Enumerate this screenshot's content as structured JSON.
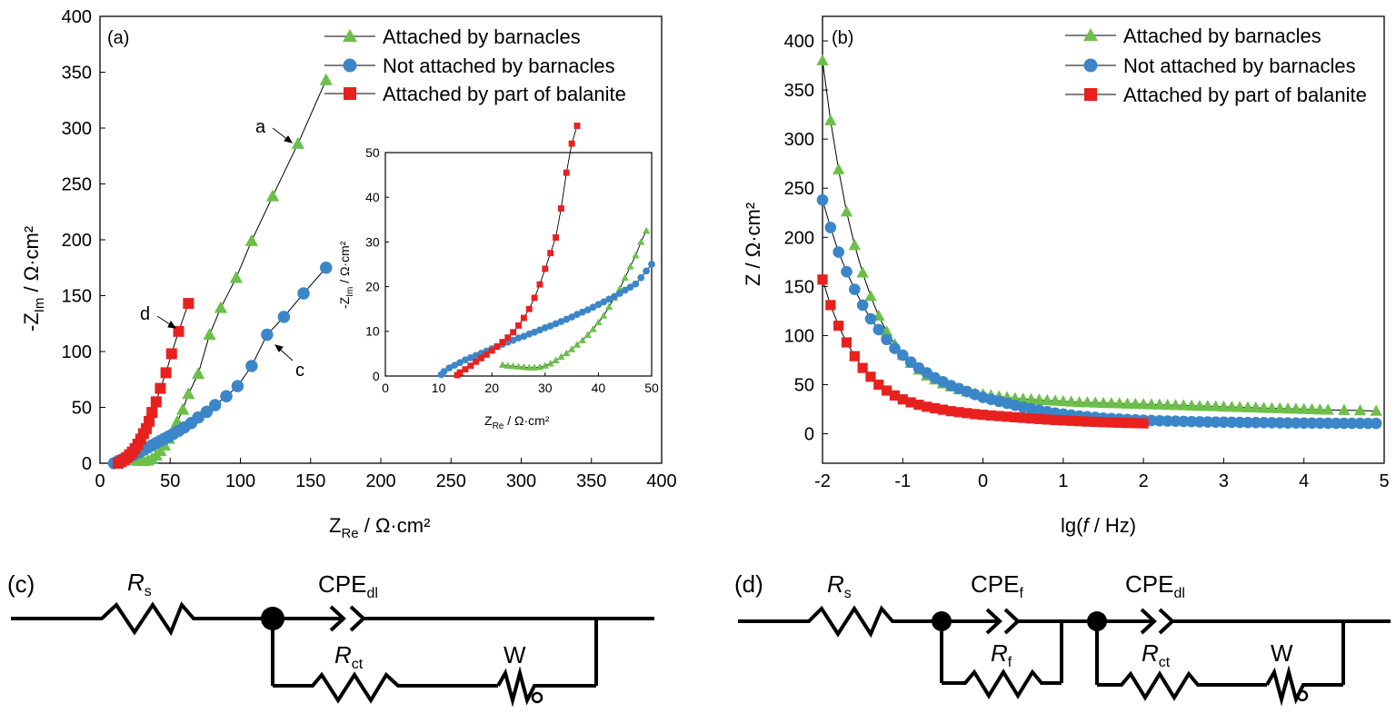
{
  "colors": {
    "green": "#6cc04a",
    "blue": "#3a86c8",
    "red": "#e8201e",
    "line": "#000000"
  },
  "chart_data": [
    {
      "type": "scatter",
      "panel_label": "(a)",
      "xlabel_main": "Z",
      "xlabel_sub": "Re",
      "xlabel_unit": " / Ω·cm²",
      "ylabel_main": "-Z",
      "ylabel_sub": "Im",
      "ylabel_unit": " / Ω·cm²",
      "xlim": [
        0,
        400
      ],
      "ylim": [
        0,
        400
      ],
      "xticks": [
        0,
        50,
        100,
        150,
        200,
        250,
        300,
        350,
        400
      ],
      "yticks": [
        0,
        50,
        100,
        150,
        200,
        250,
        300,
        350,
        400
      ],
      "legend_position": "top-right",
      "series": [
        {
          "name": "Attached by barnacles",
          "marker": "triangle",
          "color": "#6cc04a",
          "x": [
            22,
            25,
            28,
            31,
            34,
            37,
            40,
            43,
            46,
            49,
            52,
            55,
            59,
            63,
            70,
            78,
            86,
            97,
            108,
            123,
            141,
            161
          ],
          "y": [
            2.5,
            2.4,
            2.2,
            2.1,
            2.5,
            4,
            7,
            11,
            16,
            22,
            29,
            37,
            48,
            62,
            80,
            115,
            139,
            166,
            199,
            239,
            286,
            343
          ]
        },
        {
          "name": "Not attached by barnacles",
          "marker": "circle",
          "color": "#3a86c8",
          "x": [
            10,
            13,
            16,
            19,
            22,
            25,
            28,
            31,
            34,
            37,
            40,
            43,
            46,
            49,
            52,
            56,
            60,
            65,
            70,
            76,
            82,
            90,
            98,
            108,
            119,
            131,
            145,
            161
          ],
          "y": [
            0,
            2,
            3.5,
            5,
            6.5,
            8,
            10,
            12,
            14,
            16,
            18,
            20,
            22,
            24,
            26,
            29,
            32,
            36,
            41,
            46,
            52,
            60,
            69,
            87,
            115,
            131,
            152,
            175
          ]
        },
        {
          "name": "Attached by part of balanite",
          "marker": "square",
          "color": "#e8201e",
          "x": [
            13,
            15,
            17,
            19,
            21,
            23,
            25,
            27,
            29,
            31,
            33,
            35,
            37,
            40,
            43,
            47,
            51,
            56,
            63
          ],
          "y": [
            0,
            1.3,
            3,
            5,
            7.5,
            10,
            13,
            17,
            21.5,
            26.5,
            31,
            37.5,
            45.5,
            55,
            67,
            81,
            98,
            118,
            143
          ]
        }
      ],
      "annotations": [
        {
          "text": "a",
          "target": [
            141,
            286
          ]
        },
        {
          "text": "c",
          "target": [
            119,
            115
          ]
        },
        {
          "text": "d",
          "target": [
            56,
            118
          ]
        }
      ],
      "inset": {
        "xlim": [
          0,
          50
        ],
        "ylim": [
          0,
          50
        ],
        "xticks": [
          0,
          10,
          20,
          30,
          40,
          50
        ],
        "yticks": [
          0,
          10,
          20,
          30,
          40,
          50
        ],
        "xlabel_main": "Z",
        "xlabel_sub": "Re",
        "xlabel_unit": " / Ω·cm²",
        "ylabel_main": "-Z",
        "ylabel_sub": "Im",
        "ylabel_unit": " / Ω·cm²",
        "series": [
          {
            "name": "Attached by barnacles",
            "marker": "triangle",
            "color": "#6cc04a",
            "x": [
              22,
              23,
              24,
              25,
              26,
              27,
              28,
              29,
              30,
              31,
              32,
              33,
              34,
              35,
              36,
              37,
              38,
              39,
              40,
              41,
              42,
              43,
              44,
              45,
              46,
              47,
              48,
              49
            ],
            "y": [
              2.5,
              2.3,
              2.2,
              2.1,
              2.0,
              1.9,
              1.9,
              2.0,
              2.3,
              2.8,
              3.5,
              4.3,
              5.1,
              6.0,
              7.0,
              8.0,
              9.2,
              10.5,
              12,
              13.5,
              15.5,
              17.5,
              19.5,
              22,
              24.5,
              27,
              30,
              32.5
            ]
          },
          {
            "name": "Not attached by barnacles",
            "marker": "circle",
            "color": "#3a86c8",
            "x": [
              10.5,
              11,
              12,
              13,
              14,
              15,
              16,
              17,
              18,
              19,
              20,
              21,
              22,
              23,
              24,
              25,
              26,
              27,
              28,
              29,
              30,
              31,
              32,
              33,
              34,
              35,
              36,
              37,
              38,
              39,
              40,
              41,
              42,
              43,
              44,
              45,
              46,
              47,
              48,
              49,
              50
            ],
            "y": [
              0.3,
              1.0,
              1.8,
              2.4,
              3.0,
              3.6,
              4.1,
              4.6,
              5.1,
              5.6,
              6.1,
              6.6,
              7.1,
              7.6,
              8.0,
              8.5,
              8.9,
              9.4,
              9.8,
              10.3,
              10.8,
              11.2,
              11.7,
              12.2,
              12.7,
              13.2,
              13.8,
              14.3,
              14.8,
              15.4,
              16.0,
              16.6,
              17.2,
              17.8,
              18.5,
              19.2,
              19.9,
              20.6,
              22.0,
              23.5,
              25.0
            ]
          },
          {
            "name": "Attached by part of balanite",
            "marker": "square",
            "color": "#e8201e",
            "x": [
              13.5,
              14,
              15,
              16,
              17,
              18,
              19,
              20,
              21,
              22,
              23,
              24,
              25,
              26,
              27,
              28,
              29,
              30,
              31,
              32,
              33,
              34,
              35,
              36
            ],
            "y": [
              0.2,
              0.8,
              1.5,
              2.3,
              3.2,
              4.0,
              4.8,
              5.7,
              6.6,
              7.6,
              8.6,
              9.8,
              11.3,
              13.0,
              15.0,
              17.5,
              20.5,
              24.0,
              27.5,
              31.0,
              37.5,
              45.5,
              52,
              56
            ]
          }
        ]
      }
    },
    {
      "type": "scatter",
      "panel_label": "(b)",
      "xlabel_pre": "lg(",
      "xlabel_ital": "f",
      "xlabel_post": " / Hz)",
      "ylabel": "Z / Ω·cm²",
      "xlim": [
        -2,
        5
      ],
      "ylim": [
        -30,
        425
      ],
      "xticks": [
        -2,
        -1,
        0,
        1,
        2,
        3,
        4,
        5
      ],
      "yticks": [
        0,
        50,
        100,
        150,
        200,
        250,
        300,
        350,
        400
      ],
      "legend_position": "top-right",
      "series": [
        {
          "name": "Attached by barnacles",
          "marker": "triangle",
          "color": "#6cc04a",
          "x": [
            -2,
            -1.9,
            -1.8,
            -1.7,
            -1.6,
            -1.5,
            -1.4,
            -1.3,
            -1.2,
            -1.1,
            -1.0,
            -0.9,
            -0.8,
            -0.7,
            -0.6,
            -0.5,
            -0.4,
            -0.3,
            -0.2,
            -0.1,
            0.0,
            0.1,
            0.2,
            0.3,
            0.4,
            0.5,
            0.6,
            0.7,
            0.8,
            0.9,
            1.0,
            1.1,
            1.2,
            1.3,
            1.4,
            1.5,
            1.6,
            1.7,
            1.8,
            1.9,
            2.0,
            2.1,
            2.2,
            2.3,
            2.4,
            2.5,
            2.6,
            2.7,
            2.8,
            2.9,
            3.0,
            3.1,
            3.2,
            3.3,
            3.4,
            3.5,
            3.6,
            3.7,
            3.8,
            3.9,
            4.0,
            4.1,
            4.2,
            4.3,
            4.5,
            4.7,
            4.9
          ],
          "y": [
            380,
            319,
            269,
            226,
            192,
            164,
            140,
            120,
            104,
            91,
            80,
            72,
            65,
            59,
            55,
            51,
            48,
            45,
            43,
            41,
            40,
            39,
            38,
            37,
            36,
            35.5,
            35,
            34.5,
            34,
            33.5,
            33,
            32.5,
            32,
            31.8,
            31.5,
            31.2,
            31,
            30.8,
            30.5,
            30.2,
            30,
            29.8,
            29.5,
            29.2,
            29,
            28.8,
            28.5,
            28.2,
            28,
            27.8,
            27.5,
            27.2,
            27,
            26.8,
            26.5,
            26.2,
            26,
            25.8,
            25.5,
            25.2,
            25,
            24.8,
            24.5,
            24.3,
            24,
            23.6,
            23.2
          ]
        },
        {
          "name": "Not attached by barnacles",
          "marker": "circle",
          "color": "#3a86c8",
          "x": [
            -2,
            -1.9,
            -1.8,
            -1.7,
            -1.6,
            -1.5,
            -1.4,
            -1.3,
            -1.2,
            -1.1,
            -1.0,
            -0.9,
            -0.8,
            -0.7,
            -0.6,
            -0.5,
            -0.4,
            -0.3,
            -0.2,
            -0.1,
            0.0,
            0.1,
            0.2,
            0.3,
            0.4,
            0.5,
            0.6,
            0.7,
            0.8,
            0.9,
            1.0,
            1.1,
            1.2,
            1.3,
            1.4,
            1.5,
            1.6,
            1.7,
            1.8,
            1.9,
            2.0,
            2.1,
            2.2,
            2.3,
            2.4,
            2.5,
            2.6,
            2.7,
            2.8,
            2.9,
            3.0,
            3.1,
            3.2,
            3.3,
            3.4,
            3.5,
            3.6,
            3.7,
            3.8,
            3.9,
            4.0,
            4.1,
            4.2,
            4.3,
            4.4,
            4.5,
            4.6,
            4.7,
            4.8,
            4.9
          ],
          "y": [
            238,
            210,
            185,
            165,
            147,
            131,
            117,
            106,
            96,
            87,
            80,
            73,
            67,
            62,
            57,
            53,
            49,
            46,
            43,
            40,
            37,
            35,
            33,
            31,
            29,
            27,
            25.5,
            24,
            22.5,
            21,
            20,
            19,
            18,
            17.3,
            16.6,
            16,
            15.5,
            15,
            14.6,
            14.2,
            13.8,
            13.5,
            13.2,
            13,
            12.8,
            12.6,
            12.4,
            12.2,
            12,
            11.9,
            11.8,
            11.7,
            11.6,
            11.5,
            11.4,
            11.3,
            11.2,
            11.1,
            11,
            11,
            10.9,
            10.9,
            10.8,
            10.8,
            10.7,
            10.7,
            10.6,
            10.6,
            10.5,
            10.5
          ]
        },
        {
          "name": "Attached by part of balanite",
          "marker": "square",
          "color": "#e8201e",
          "x": [
            -2,
            -1.9,
            -1.8,
            -1.7,
            -1.6,
            -1.5,
            -1.4,
            -1.3,
            -1.2,
            -1.1,
            -1.0,
            -0.9,
            -0.8,
            -0.7,
            -0.6,
            -0.5,
            -0.4,
            -0.3,
            -0.2,
            -0.1,
            0.0,
            0.1,
            0.2,
            0.3,
            0.4,
            0.5,
            0.6,
            0.7,
            0.8,
            0.9,
            1.0,
            1.1,
            1.2,
            1.3,
            1.4,
            1.5,
            1.6,
            1.7,
            1.8,
            1.9,
            2.0
          ],
          "y": [
            157,
            131,
            110,
            93,
            79,
            67,
            58,
            50,
            44,
            39,
            35,
            32,
            29.5,
            27.5,
            26,
            24.5,
            23,
            22,
            21,
            20,
            19.3,
            18.6,
            18,
            17.4,
            16.8,
            16.2,
            15.6,
            15,
            14.5,
            14,
            13.6,
            13.2,
            12.8,
            12.4,
            12.1,
            11.8,
            11.5,
            11.2,
            11,
            10.8,
            10.6
          ]
        }
      ]
    }
  ],
  "circuits": [
    {
      "label": "(c)",
      "rs_main": "R",
      "rs_sub": "s",
      "cpe_main": "CPE",
      "cpe_sub": "dl",
      "rct_main": "R",
      "rct_sub": "ct",
      "w": "W"
    },
    {
      "label": "(d)",
      "rs_main": "R",
      "rs_sub": "s",
      "cpef_main": "CPE",
      "cpef_sub": "f",
      "rf_main": "R",
      "rf_sub": "f",
      "cpe_main": "CPE",
      "cpe_sub": "dl",
      "rct_main": "R",
      "rct_sub": "ct",
      "w": "W"
    }
  ]
}
